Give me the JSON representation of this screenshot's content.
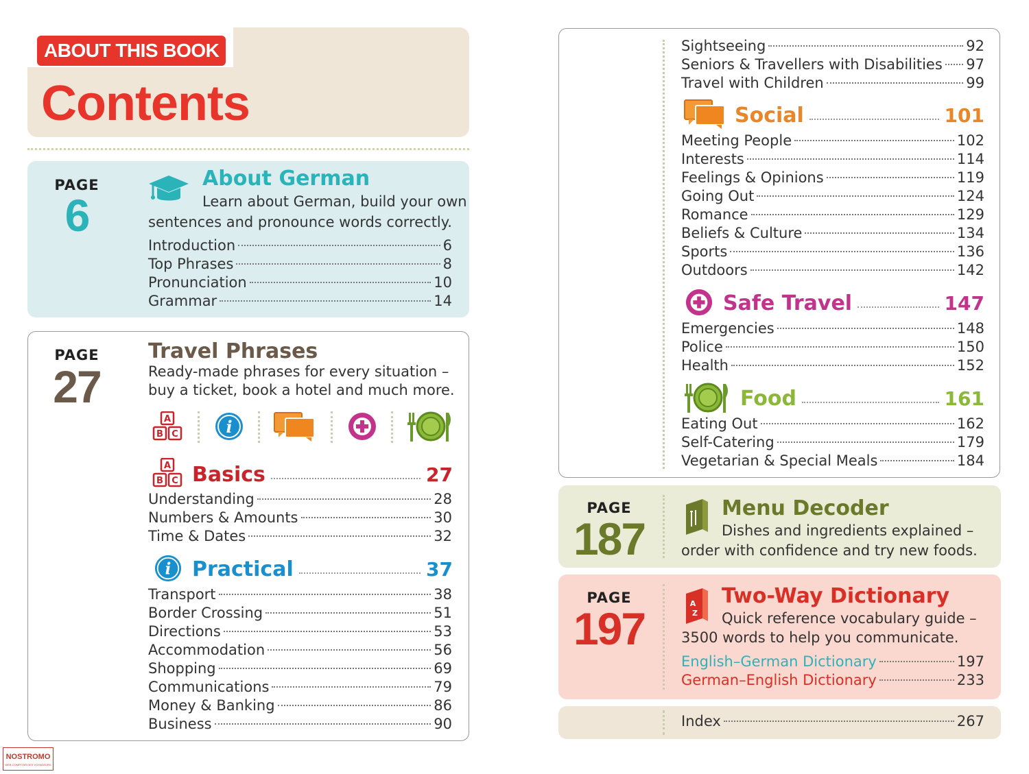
{
  "header": {
    "badge": "ABOUT THIS BOOK",
    "title": "Contents"
  },
  "colors": {
    "red": "#e8352b",
    "teal": "#2ab3b8",
    "brown": "#6b5a4a",
    "blue": "#1a8fce",
    "orange": "#e8862a",
    "magenta": "#c2338c",
    "green": "#8cb83a",
    "olive": "#6b7a2a",
    "dict_red": "#d63027"
  },
  "about": {
    "page_label": "PAGE",
    "page_num": "6",
    "title": "About German",
    "icon": "graduation-cap-icon",
    "desc_line1": "Learn about German, build your own",
    "desc_line2": "sentences and pronounce words correctly.",
    "items": [
      {
        "label": "Introduction",
        "page": "6"
      },
      {
        "label": "Top Phrases",
        "page": "8"
      },
      {
        "label": "Pronunciation",
        "page": "10"
      },
      {
        "label": "Grammar",
        "page": "14"
      }
    ]
  },
  "travel": {
    "page_label": "PAGE",
    "page_num": "27",
    "title": "Travel Phrases",
    "desc_line1": "Ready-made phrases for every situation –",
    "desc_line2": "buy a ticket, book a hotel and much more.",
    "icons": [
      "abc-blocks-icon",
      "info-icon",
      "speech-bubbles-icon",
      "plus-cross-icon",
      "plate-cutlery-icon"
    ],
    "basics": {
      "name": "Basics",
      "page": "27",
      "items": [
        {
          "label": "Understanding",
          "page": "28"
        },
        {
          "label": "Numbers & Amounts",
          "page": "30"
        },
        {
          "label": "Time & Dates",
          "page": "32"
        }
      ]
    },
    "practical": {
      "name": "Practical",
      "page": "37",
      "items": [
        {
          "label": "Transport",
          "page": "38"
        },
        {
          "label": "Border Crossing",
          "page": "51"
        },
        {
          "label": "Directions",
          "page": "53"
        },
        {
          "label": "Accommodation",
          "page": "56"
        },
        {
          "label": "Shopping",
          "page": "69"
        },
        {
          "label": "Communications",
          "page": "79"
        },
        {
          "label": "Money & Banking",
          "page": "86"
        },
        {
          "label": "Business",
          "page": "90"
        }
      ]
    }
  },
  "right_top": {
    "items": [
      {
        "label": "Sightseeing",
        "page": "92"
      },
      {
        "label": "Seniors & Travellers with Disabilities",
        "page": "97"
      },
      {
        "label": "Travel with Children",
        "page": "99"
      }
    ],
    "social": {
      "name": "Social",
      "page": "101",
      "items": [
        {
          "label": "Meeting People",
          "page": "102"
        },
        {
          "label": "Interests",
          "page": "114"
        },
        {
          "label": "Feelings & Opinions",
          "page": "119"
        },
        {
          "label": "Going Out",
          "page": "124"
        },
        {
          "label": "Romance",
          "page": "129"
        },
        {
          "label": "Beliefs & Culture",
          "page": "134"
        },
        {
          "label": "Sports",
          "page": "136"
        },
        {
          "label": "Outdoors",
          "page": "142"
        }
      ]
    },
    "safe": {
      "name": "Safe Travel",
      "page": "147",
      "items": [
        {
          "label": "Emergencies",
          "page": "148"
        },
        {
          "label": "Police",
          "page": "150"
        },
        {
          "label": "Health",
          "page": "152"
        }
      ]
    },
    "food": {
      "name": "Food",
      "page": "161",
      "items": [
        {
          "label": "Eating Out",
          "page": "162"
        },
        {
          "label": "Self-Catering",
          "page": "179"
        },
        {
          "label": "Vegetarian & Special Meals",
          "page": "184"
        }
      ]
    }
  },
  "menu": {
    "page_label": "PAGE",
    "page_num": "187",
    "title": "Menu Decoder",
    "icon": "menu-book-icon",
    "desc_line1": "Dishes and ingredients explained –",
    "desc_line2": "order with confidence and try new foods."
  },
  "dictionary": {
    "page_label": "PAGE",
    "page_num": "197",
    "title": "Two-Way Dictionary",
    "icon": "dictionary-book-icon",
    "desc_line1": "Quick reference vocabulary guide –",
    "desc_line2": "3500 words to help you communicate.",
    "items": [
      {
        "label": "English–German Dictionary",
        "page": "197"
      },
      {
        "label": "German–English Dictionary",
        "page": "233"
      }
    ]
  },
  "index": {
    "label": "Index",
    "page": "267"
  },
  "watermark": {
    "text": "NOSTROMO",
    "subtext": "WEB COMPTOIR DES VOYAGEURS"
  }
}
